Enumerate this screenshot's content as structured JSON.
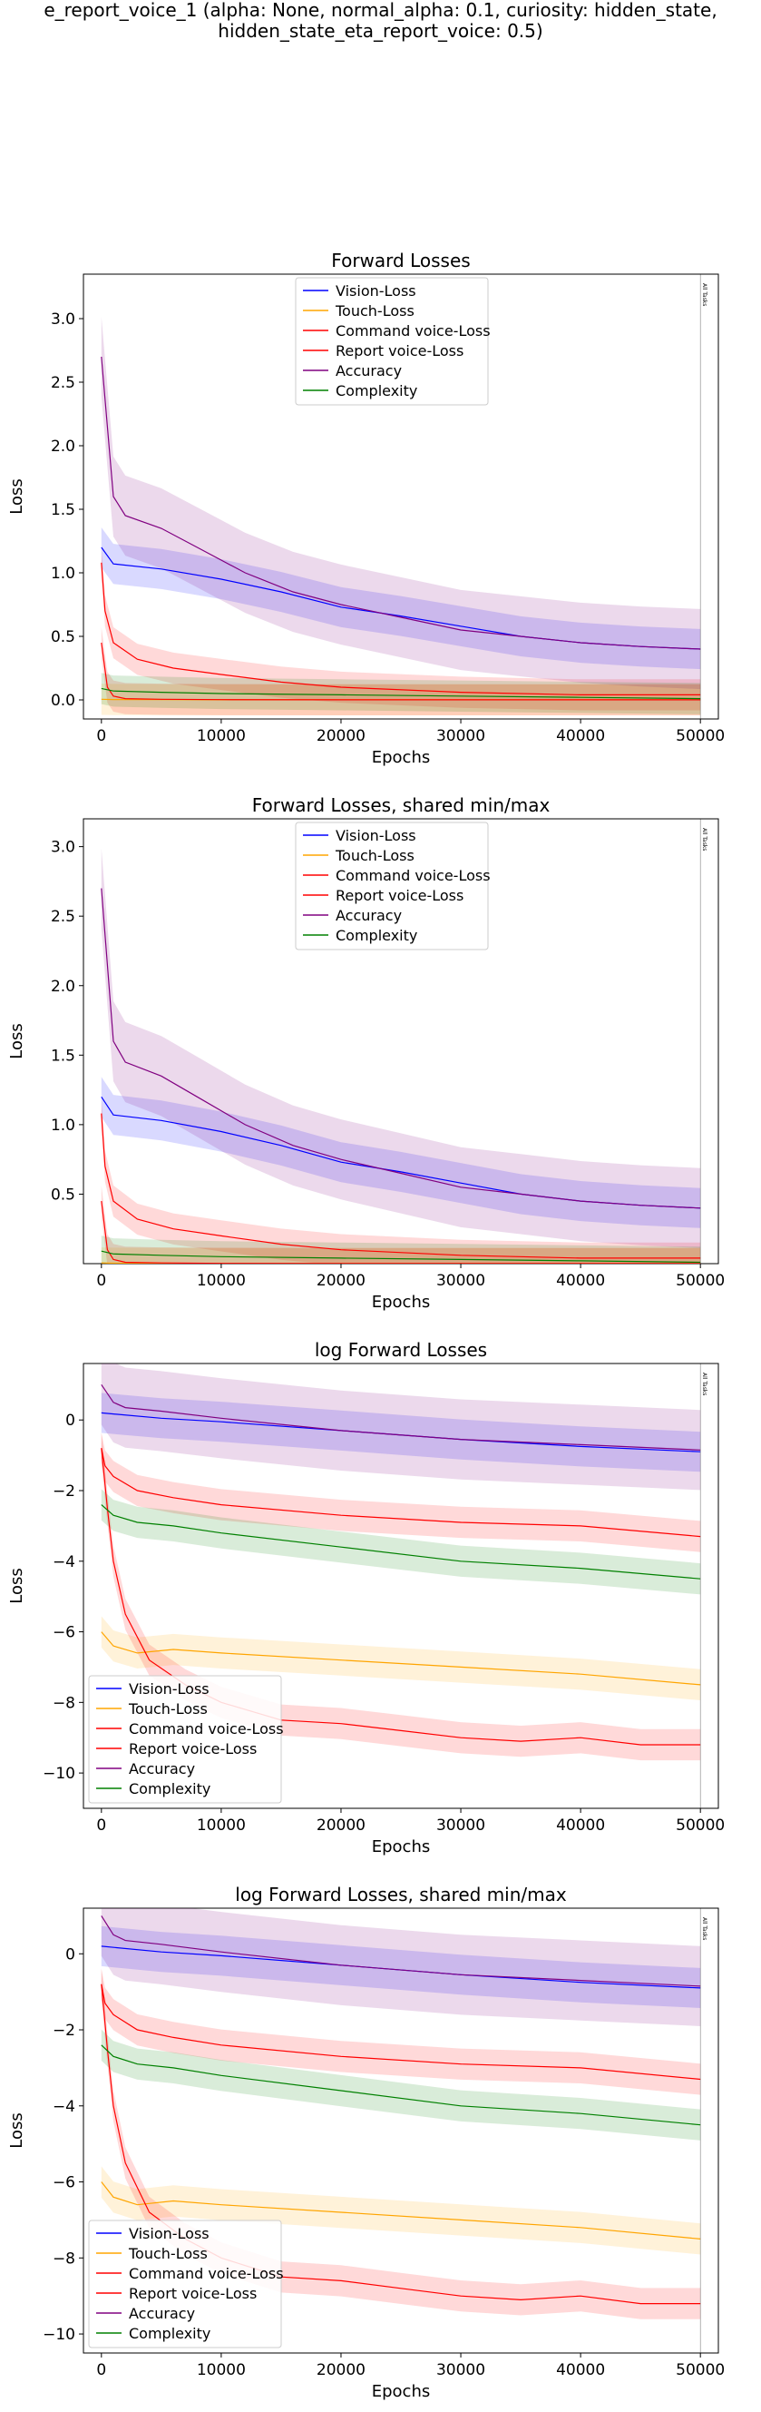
{
  "figure": {
    "title_line1": "e_report_voice_1 (alpha: None, normal_alpha: 0.1, curiosity: hidden_state,",
    "title_line2": "hidden_state_eta_report_voice: 0.5)"
  },
  "colors": {
    "Vision-Loss": "#0000ff",
    "Touch-Loss": "#ffa500",
    "Command voice-Loss": "#ff0000",
    "Report voice-Loss": "#ff0000",
    "Accuracy": "#800080",
    "Complexity": "#008000"
  },
  "chart_data": [
    {
      "type": "line",
      "title": "Forward Losses",
      "xlabel": "Epochs",
      "ylabel": "Loss",
      "xlim": [
        -1500,
        51500
      ],
      "ylim": [
        -0.15,
        3.35
      ],
      "xticks": [
        0,
        10000,
        20000,
        30000,
        40000,
        50000
      ],
      "yticks": [
        0.0,
        0.5,
        1.0,
        1.5,
        2.0,
        2.5,
        3.0
      ],
      "log": false,
      "legend_position": "upper center",
      "vline": {
        "x": 50000,
        "label": "All Tasks"
      },
      "series": [
        {
          "name": "Vision-Loss",
          "x": [
            0,
            1000,
            5000,
            10000,
            15000,
            20000,
            25000,
            30000,
            35000,
            40000,
            45000,
            50000
          ],
          "y": [
            1.2,
            1.07,
            1.03,
            0.95,
            0.85,
            0.73,
            0.66,
            0.58,
            0.5,
            0.45,
            0.42,
            0.4
          ]
        },
        {
          "name": "Touch-Loss",
          "x": [
            0,
            1000,
            5000,
            10000,
            20000,
            30000,
            40000,
            50000
          ],
          "y": [
            0.005,
            0.003,
            0.002,
            0.001,
            0.001,
            0.001,
            0.001,
            0.001
          ]
        },
        {
          "name": "Command voice-Loss",
          "x": [
            0,
            300,
            1000,
            3000,
            6000,
            10000,
            15000,
            20000,
            30000,
            40000,
            50000
          ],
          "y": [
            1.08,
            0.7,
            0.45,
            0.32,
            0.25,
            0.2,
            0.14,
            0.1,
            0.06,
            0.04,
            0.04
          ]
        },
        {
          "name": "Report voice-Loss",
          "x": [
            0,
            500,
            1000,
            2000,
            5000,
            10000,
            20000,
            30000,
            40000,
            50000
          ],
          "y": [
            0.45,
            0.1,
            0.03,
            0.01,
            0.005,
            0.002,
            0.001,
            0.001,
            0.001,
            0.001
          ]
        },
        {
          "name": "Accuracy",
          "x": [
            0,
            1000,
            2000,
            5000,
            8000,
            12000,
            16000,
            20000,
            25000,
            30000,
            35000,
            40000,
            45000,
            50000
          ],
          "y": [
            2.7,
            1.6,
            1.45,
            1.35,
            1.2,
            1.0,
            0.85,
            0.75,
            0.65,
            0.55,
            0.5,
            0.45,
            0.42,
            0.4
          ]
        },
        {
          "name": "Complexity",
          "x": [
            0,
            1000,
            5000,
            10000,
            20000,
            30000,
            40000,
            50000
          ],
          "y": [
            0.09,
            0.07,
            0.06,
            0.05,
            0.04,
            0.03,
            0.02,
            0.01
          ]
        }
      ]
    },
    {
      "type": "line",
      "title": "Forward Losses, shared min/max",
      "xlabel": "Epochs",
      "ylabel": "Loss",
      "xlim": [
        -1500,
        51500
      ],
      "ylim": [
        0.0,
        3.2
      ],
      "xticks": [
        0,
        10000,
        20000,
        30000,
        40000,
        50000
      ],
      "yticks": [
        0.5,
        1.0,
        1.5,
        2.0,
        2.5,
        3.0
      ],
      "log": false,
      "legend_position": "upper center",
      "vline": {
        "x": 50000,
        "label": "All Tasks"
      },
      "series": [
        {
          "name": "Vision-Loss",
          "x": [
            0,
            1000,
            5000,
            10000,
            15000,
            20000,
            25000,
            30000,
            35000,
            40000,
            45000,
            50000
          ],
          "y": [
            1.2,
            1.07,
            1.03,
            0.95,
            0.85,
            0.73,
            0.66,
            0.58,
            0.5,
            0.45,
            0.42,
            0.4
          ]
        },
        {
          "name": "Touch-Loss",
          "x": [
            0,
            1000,
            5000,
            10000,
            20000,
            30000,
            40000,
            50000
          ],
          "y": [
            0.005,
            0.003,
            0.002,
            0.001,
            0.001,
            0.001,
            0.001,
            0.001
          ]
        },
        {
          "name": "Command voice-Loss",
          "x": [
            0,
            300,
            1000,
            3000,
            6000,
            10000,
            15000,
            20000,
            30000,
            40000,
            50000
          ],
          "y": [
            1.08,
            0.7,
            0.45,
            0.32,
            0.25,
            0.2,
            0.14,
            0.1,
            0.06,
            0.04,
            0.04
          ]
        },
        {
          "name": "Report voice-Loss",
          "x": [
            0,
            500,
            1000,
            2000,
            5000,
            10000,
            20000,
            30000,
            40000,
            50000
          ],
          "y": [
            0.45,
            0.1,
            0.03,
            0.01,
            0.005,
            0.002,
            0.001,
            0.001,
            0.001,
            0.001
          ]
        },
        {
          "name": "Accuracy",
          "x": [
            0,
            1000,
            2000,
            5000,
            8000,
            12000,
            16000,
            20000,
            25000,
            30000,
            35000,
            40000,
            45000,
            50000
          ],
          "y": [
            2.7,
            1.6,
            1.45,
            1.35,
            1.2,
            1.0,
            0.85,
            0.75,
            0.65,
            0.55,
            0.5,
            0.45,
            0.42,
            0.4
          ]
        },
        {
          "name": "Complexity",
          "x": [
            0,
            1000,
            5000,
            10000,
            20000,
            30000,
            40000,
            50000
          ],
          "y": [
            0.09,
            0.07,
            0.06,
            0.05,
            0.04,
            0.03,
            0.02,
            0.01
          ]
        }
      ]
    },
    {
      "type": "line",
      "title": "log Forward Losses",
      "xlabel": "Epochs",
      "ylabel": "Loss",
      "xlim": [
        -1500,
        51500
      ],
      "ylim": [
        -11.0,
        1.6
      ],
      "xticks": [
        0,
        10000,
        20000,
        30000,
        40000,
        50000
      ],
      "yticks": [
        0,
        -2,
        -4,
        -6,
        -8,
        -10
      ],
      "log": true,
      "legend_position": "lower left",
      "vline": {
        "x": 50000,
        "label": "All Tasks"
      },
      "series": [
        {
          "name": "Vision-Loss",
          "x": [
            0,
            5000,
            10000,
            20000,
            30000,
            40000,
            50000
          ],
          "y": [
            0.2,
            0.05,
            -0.05,
            -0.3,
            -0.55,
            -0.75,
            -0.9
          ]
        },
        {
          "name": "Touch-Loss",
          "x": [
            0,
            1000,
            3000,
            6000,
            10000,
            20000,
            30000,
            40000,
            50000
          ],
          "y": [
            -6.0,
            -6.4,
            -6.6,
            -6.5,
            -6.6,
            -6.8,
            -7.0,
            -7.2,
            -7.5
          ]
        },
        {
          "name": "Command voice-Loss",
          "x": [
            0,
            300,
            1000,
            3000,
            6000,
            10000,
            20000,
            30000,
            40000,
            50000
          ],
          "y": [
            -0.8,
            -1.3,
            -1.6,
            -2.0,
            -2.2,
            -2.4,
            -2.7,
            -2.9,
            -3.0,
            -3.3
          ]
        },
        {
          "name": "Report voice-Loss",
          "x": [
            0,
            500,
            1000,
            2000,
            4000,
            7000,
            10000,
            15000,
            20000,
            25000,
            30000,
            35000,
            40000,
            45000,
            50000
          ],
          "y": [
            -0.8,
            -2.5,
            -4.0,
            -5.5,
            -6.8,
            -7.5,
            -8.0,
            -8.5,
            -8.6,
            -8.8,
            -9.0,
            -9.1,
            -9.0,
            -9.2,
            -9.2
          ]
        },
        {
          "name": "Accuracy",
          "x": [
            0,
            1000,
            2000,
            5000,
            10000,
            20000,
            30000,
            40000,
            50000
          ],
          "y": [
            1.0,
            0.5,
            0.35,
            0.25,
            0.05,
            -0.3,
            -0.55,
            -0.7,
            -0.85
          ]
        },
        {
          "name": "Complexity",
          "x": [
            0,
            1000,
            3000,
            6000,
            10000,
            20000,
            30000,
            40000,
            50000
          ],
          "y": [
            -2.4,
            -2.7,
            -2.9,
            -3.0,
            -3.2,
            -3.6,
            -4.0,
            -4.2,
            -4.5
          ]
        }
      ]
    },
    {
      "type": "line",
      "title": "log Forward Losses, shared min/max",
      "xlabel": "Epochs",
      "ylabel": "Loss",
      "xlim": [
        -1500,
        51500
      ],
      "ylim": [
        -10.5,
        1.2
      ],
      "xticks": [
        0,
        10000,
        20000,
        30000,
        40000,
        50000
      ],
      "yticks": [
        0,
        -2,
        -4,
        -6,
        -8,
        -10
      ],
      "log": true,
      "legend_position": "lower left",
      "vline": {
        "x": 50000,
        "label": "All Tasks"
      },
      "series": [
        {
          "name": "Vision-Loss",
          "x": [
            0,
            5000,
            10000,
            20000,
            30000,
            40000,
            50000
          ],
          "y": [
            0.2,
            0.05,
            -0.05,
            -0.3,
            -0.55,
            -0.75,
            -0.9
          ]
        },
        {
          "name": "Touch-Loss",
          "x": [
            0,
            1000,
            3000,
            6000,
            10000,
            20000,
            30000,
            40000,
            50000
          ],
          "y": [
            -6.0,
            -6.4,
            -6.6,
            -6.5,
            -6.6,
            -6.8,
            -7.0,
            -7.2,
            -7.5
          ]
        },
        {
          "name": "Command voice-Loss",
          "x": [
            0,
            300,
            1000,
            3000,
            6000,
            10000,
            20000,
            30000,
            40000,
            50000
          ],
          "y": [
            -0.8,
            -1.3,
            -1.6,
            -2.0,
            -2.2,
            -2.4,
            -2.7,
            -2.9,
            -3.0,
            -3.3
          ]
        },
        {
          "name": "Report voice-Loss",
          "x": [
            0,
            500,
            1000,
            2000,
            4000,
            7000,
            10000,
            15000,
            20000,
            25000,
            30000,
            35000,
            40000,
            45000,
            50000
          ],
          "y": [
            -0.8,
            -2.5,
            -4.0,
            -5.5,
            -6.8,
            -7.5,
            -8.0,
            -8.5,
            -8.6,
            -8.8,
            -9.0,
            -9.1,
            -9.0,
            -9.2,
            -9.2
          ]
        },
        {
          "name": "Accuracy",
          "x": [
            0,
            1000,
            2000,
            5000,
            10000,
            20000,
            30000,
            40000,
            50000
          ],
          "y": [
            1.0,
            0.5,
            0.35,
            0.25,
            0.05,
            -0.3,
            -0.55,
            -0.7,
            -0.85
          ]
        },
        {
          "name": "Complexity",
          "x": [
            0,
            1000,
            3000,
            6000,
            10000,
            20000,
            30000,
            40000,
            50000
          ],
          "y": [
            -2.4,
            -2.7,
            -2.9,
            -3.0,
            -3.2,
            -3.6,
            -4.0,
            -4.2,
            -4.5
          ]
        }
      ]
    }
  ]
}
